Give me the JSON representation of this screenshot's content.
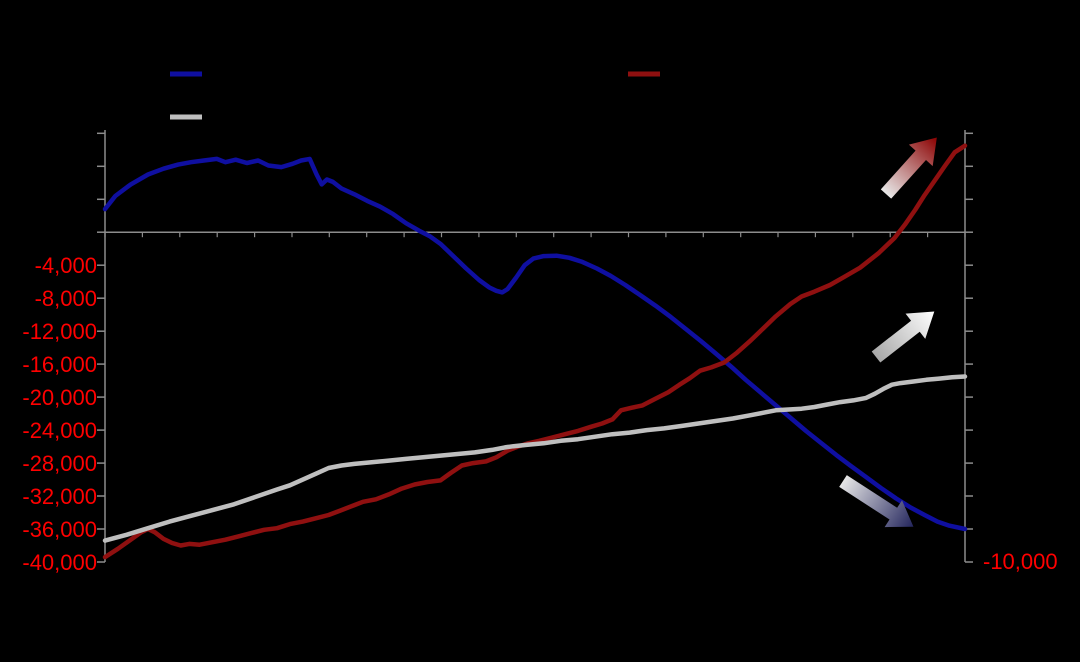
{
  "chart_data": {
    "type": "line",
    "background": "#000000",
    "axis_color": "#8c8c8c",
    "zero_line": true,
    "left_axis": {
      "min": -40000,
      "max": 12400,
      "tick_step": 4000,
      "label_color": "#ff0000",
      "tick_labels": [
        "-4,000",
        "-8,000",
        "-12,000",
        "-16,000",
        "-20,000",
        "-24,000",
        "-28,000",
        "-32,000",
        "-36,000",
        "-40,000"
      ]
    },
    "right_axis": {
      "visible_label": "-10,000",
      "label_color": "#ff0000"
    },
    "legend": [
      {
        "series": "dark-blue",
        "swatch_color": "#0f0fa0"
      },
      {
        "series": "dark-red",
        "swatch_color": "#8f1010"
      },
      {
        "series": "gray",
        "swatch_color": "#bfbfbf"
      }
    ],
    "series": [
      {
        "name": "dark-blue",
        "color": "#0f0fa0",
        "width": 4.5,
        "axis": "left",
        "points": [
          [
            0,
            2800
          ],
          [
            0.012,
            4400
          ],
          [
            0.03,
            5800
          ],
          [
            0.05,
            7000
          ],
          [
            0.068,
            7700
          ],
          [
            0.085,
            8200
          ],
          [
            0.1,
            8500
          ],
          [
            0.115,
            8700
          ],
          [
            0.13,
            8900
          ],
          [
            0.14,
            8500
          ],
          [
            0.152,
            8800
          ],
          [
            0.165,
            8400
          ],
          [
            0.178,
            8700
          ],
          [
            0.19,
            8100
          ],
          [
            0.205,
            7900
          ],
          [
            0.218,
            8300
          ],
          [
            0.228,
            8700
          ],
          [
            0.238,
            8900
          ],
          [
            0.246,
            7000
          ],
          [
            0.252,
            5800
          ],
          [
            0.258,
            6400
          ],
          [
            0.265,
            6100
          ],
          [
            0.275,
            5300
          ],
          [
            0.29,
            4600
          ],
          [
            0.305,
            3800
          ],
          [
            0.32,
            3100
          ],
          [
            0.335,
            2200
          ],
          [
            0.35,
            1100
          ],
          [
            0.365,
            200
          ],
          [
            0.378,
            -500
          ],
          [
            0.39,
            -1400
          ],
          [
            0.405,
            -2900
          ],
          [
            0.42,
            -4400
          ],
          [
            0.435,
            -5800
          ],
          [
            0.447,
            -6700
          ],
          [
            0.455,
            -7100
          ],
          [
            0.462,
            -7300
          ],
          [
            0.468,
            -6900
          ],
          [
            0.478,
            -5500
          ],
          [
            0.488,
            -4000
          ],
          [
            0.498,
            -3200
          ],
          [
            0.51,
            -2900
          ],
          [
            0.525,
            -2850
          ],
          [
            0.54,
            -3100
          ],
          [
            0.555,
            -3600
          ],
          [
            0.572,
            -4400
          ],
          [
            0.588,
            -5300
          ],
          [
            0.605,
            -6400
          ],
          [
            0.622,
            -7600
          ],
          [
            0.64,
            -8900
          ],
          [
            0.658,
            -10300
          ],
          [
            0.675,
            -11700
          ],
          [
            0.693,
            -13200
          ],
          [
            0.71,
            -14700
          ],
          [
            0.728,
            -16300
          ],
          [
            0.745,
            -17900
          ],
          [
            0.762,
            -19400
          ],
          [
            0.78,
            -21000
          ],
          [
            0.798,
            -22600
          ],
          [
            0.815,
            -24100
          ],
          [
            0.832,
            -25500
          ],
          [
            0.85,
            -27000
          ],
          [
            0.868,
            -28400
          ],
          [
            0.885,
            -29700
          ],
          [
            0.902,
            -31000
          ],
          [
            0.92,
            -32300
          ],
          [
            0.937,
            -33400
          ],
          [
            0.953,
            -34300
          ],
          [
            0.968,
            -35100
          ],
          [
            0.982,
            -35600
          ],
          [
            1,
            -36000
          ]
        ]
      },
      {
        "name": "dark-red",
        "color": "#8f1010",
        "width": 4.5,
        "axis": "right",
        "points": [
          [
            0,
            -39400
          ],
          [
            0.015,
            -38400
          ],
          [
            0.03,
            -37300
          ],
          [
            0.042,
            -36400
          ],
          [
            0.05,
            -36000
          ],
          [
            0.058,
            -36400
          ],
          [
            0.068,
            -37200
          ],
          [
            0.078,
            -37700
          ],
          [
            0.088,
            -38000
          ],
          [
            0.098,
            -37800
          ],
          [
            0.11,
            -37900
          ],
          [
            0.125,
            -37600
          ],
          [
            0.14,
            -37300
          ],
          [
            0.155,
            -36900
          ],
          [
            0.17,
            -36500
          ],
          [
            0.185,
            -36100
          ],
          [
            0.2,
            -35900
          ],
          [
            0.215,
            -35400
          ],
          [
            0.23,
            -35100
          ],
          [
            0.245,
            -34700
          ],
          [
            0.26,
            -34300
          ],
          [
            0.275,
            -33700
          ],
          [
            0.29,
            -33100
          ],
          [
            0.3,
            -32700
          ],
          [
            0.315,
            -32400
          ],
          [
            0.33,
            -31800
          ],
          [
            0.345,
            -31100
          ],
          [
            0.36,
            -30600
          ],
          [
            0.375,
            -30300
          ],
          [
            0.39,
            -30100
          ],
          [
            0.402,
            -29200
          ],
          [
            0.415,
            -28300
          ],
          [
            0.428,
            -28000
          ],
          [
            0.443,
            -27800
          ],
          [
            0.455,
            -27300
          ],
          [
            0.468,
            -26500
          ],
          [
            0.48,
            -26000
          ],
          [
            0.492,
            -25600
          ],
          [
            0.505,
            -25300
          ],
          [
            0.52,
            -24900
          ],
          [
            0.535,
            -24500
          ],
          [
            0.55,
            -24100
          ],
          [
            0.565,
            -23600
          ],
          [
            0.578,
            -23200
          ],
          [
            0.59,
            -22700
          ],
          [
            0.6,
            -21600
          ],
          [
            0.612,
            -21300
          ],
          [
            0.625,
            -21000
          ],
          [
            0.64,
            -20200
          ],
          [
            0.655,
            -19400
          ],
          [
            0.668,
            -18500
          ],
          [
            0.68,
            -17700
          ],
          [
            0.692,
            -16800
          ],
          [
            0.705,
            -16400
          ],
          [
            0.72,
            -15800
          ],
          [
            0.735,
            -14600
          ],
          [
            0.75,
            -13200
          ],
          [
            0.765,
            -11700
          ],
          [
            0.78,
            -10200
          ],
          [
            0.797,
            -8700
          ],
          [
            0.81,
            -7800
          ],
          [
            0.825,
            -7200
          ],
          [
            0.843,
            -6400
          ],
          [
            0.86,
            -5400
          ],
          [
            0.878,
            -4300
          ],
          [
            0.9,
            -2500
          ],
          [
            0.918,
            -700
          ],
          [
            0.93,
            900
          ],
          [
            0.942,
            2700
          ],
          [
            0.953,
            4500
          ],
          [
            0.965,
            6300
          ],
          [
            0.977,
            8100
          ],
          [
            0.988,
            9700
          ],
          [
            1,
            10500
          ]
        ]
      },
      {
        "name": "gray",
        "color": "#bfbfbf",
        "width": 4.5,
        "axis": "left",
        "points": [
          [
            0,
            -37400
          ],
          [
            0.025,
            -36700
          ],
          [
            0.05,
            -35900
          ],
          [
            0.075,
            -35100
          ],
          [
            0.1,
            -34400
          ],
          [
            0.125,
            -33700
          ],
          [
            0.15,
            -33000
          ],
          [
            0.175,
            -32100
          ],
          [
            0.2,
            -31200
          ],
          [
            0.215,
            -30700
          ],
          [
            0.23,
            -30000
          ],
          [
            0.245,
            -29300
          ],
          [
            0.26,
            -28600
          ],
          [
            0.275,
            -28300
          ],
          [
            0.29,
            -28100
          ],
          [
            0.31,
            -27900
          ],
          [
            0.33,
            -27700
          ],
          [
            0.35,
            -27500
          ],
          [
            0.37,
            -27300
          ],
          [
            0.39,
            -27100
          ],
          [
            0.41,
            -26900
          ],
          [
            0.43,
            -26700
          ],
          [
            0.45,
            -26400
          ],
          [
            0.465,
            -26100
          ],
          [
            0.475,
            -25950
          ],
          [
            0.49,
            -25800
          ],
          [
            0.51,
            -25600
          ],
          [
            0.53,
            -25300
          ],
          [
            0.55,
            -25100
          ],
          [
            0.57,
            -24800
          ],
          [
            0.59,
            -24500
          ],
          [
            0.61,
            -24300
          ],
          [
            0.63,
            -24000
          ],
          [
            0.65,
            -23800
          ],
          [
            0.67,
            -23500
          ],
          [
            0.69,
            -23200
          ],
          [
            0.71,
            -22900
          ],
          [
            0.73,
            -22600
          ],
          [
            0.75,
            -22200
          ],
          [
            0.765,
            -21900
          ],
          [
            0.78,
            -21600
          ],
          [
            0.795,
            -21500
          ],
          [
            0.81,
            -21400
          ],
          [
            0.825,
            -21200
          ],
          [
            0.84,
            -20900
          ],
          [
            0.855,
            -20600
          ],
          [
            0.87,
            -20400
          ],
          [
            0.885,
            -20100
          ],
          [
            0.895,
            -19600
          ],
          [
            0.905,
            -19000
          ],
          [
            0.915,
            -18500
          ],
          [
            0.925,
            -18300
          ],
          [
            0.94,
            -18100
          ],
          [
            0.955,
            -17900
          ],
          [
            0.97,
            -17750
          ],
          [
            0.985,
            -17600
          ],
          [
            1,
            -17500
          ]
        ]
      }
    ],
    "annotations": [
      {
        "name": "red-up-arrow",
        "type": "arrow",
        "direction": "up-right",
        "gradient": [
          "#e8e8e8",
          "#8b0000"
        ]
      },
      {
        "name": "gray-up-arrow",
        "type": "arrow",
        "direction": "up-right",
        "gradient": [
          "#a8a8a8",
          "#ffffff"
        ]
      },
      {
        "name": "blue-down-arrow",
        "type": "arrow",
        "direction": "down-right",
        "gradient": [
          "#e6e6e6",
          "#23255c"
        ]
      }
    ]
  }
}
